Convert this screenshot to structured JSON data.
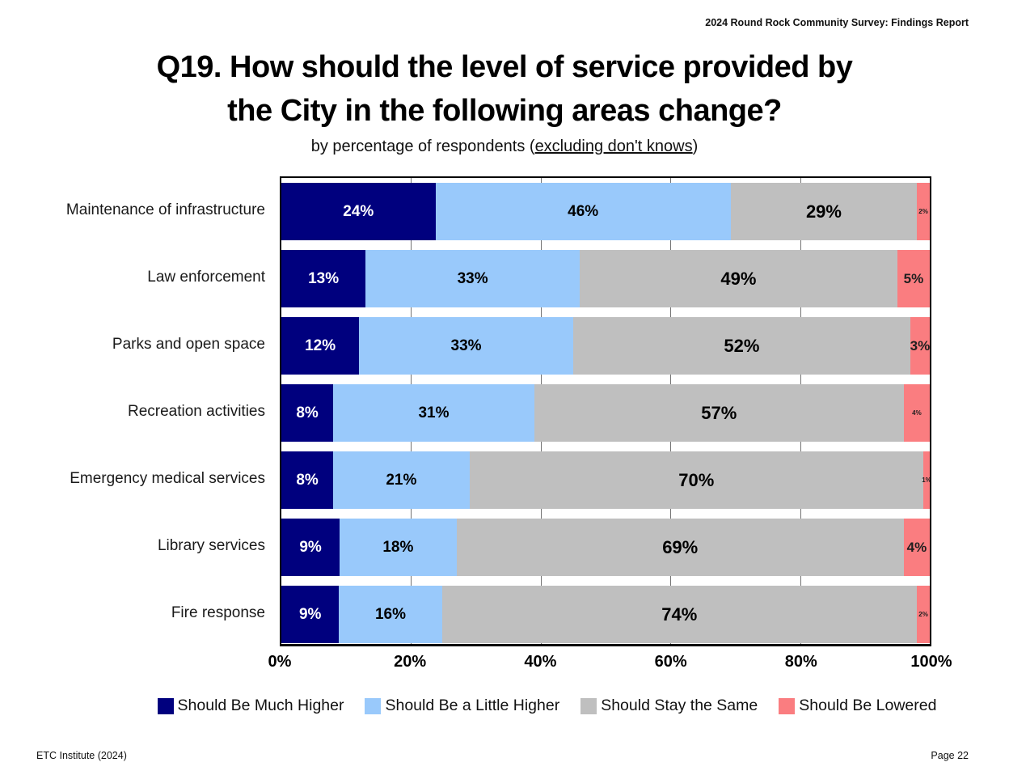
{
  "header": {
    "report_title": "2024 Round Rock Community Survey:  Findings Report"
  },
  "title_lines": {
    "line1": "Q19. How should the level of service provided by",
    "line2": "the City in the following areas change?"
  },
  "subtitle": {
    "prefix": "by percentage of respondents (",
    "underlined": "excluding don't knows",
    "suffix": ")"
  },
  "chart_data": {
    "type": "bar",
    "orientation": "horizontal-stacked",
    "title": "Q19. How should the level of service provided by the City in the following areas change?",
    "subtitle": "by percentage of respondents (excluding don't knows)",
    "categories": [
      "Maintenance of infrastructure",
      "Law enforcement",
      "Parks and open space",
      "Recreation activities",
      "Emergency medical services",
      "Library services",
      "Fire response"
    ],
    "series": [
      {
        "name": "Should Be Much Higher",
        "color": "#00007E",
        "values": [
          24,
          13,
          12,
          8,
          8,
          9,
          9
        ]
      },
      {
        "name": "Should Be a Little Higher",
        "color": "#99C9FB",
        "values": [
          46,
          33,
          33,
          31,
          21,
          18,
          16
        ]
      },
      {
        "name": "Should Stay the Same",
        "color": "#BFBFBF",
        "values": [
          29,
          49,
          52,
          57,
          70,
          69,
          74
        ]
      },
      {
        "name": "Should Be Lowered",
        "color": "#FA7D80",
        "values": [
          2,
          5,
          3,
          4,
          1,
          4,
          2
        ]
      }
    ],
    "x_ticks": [
      "0%",
      "20%",
      "40%",
      "60%",
      "80%",
      "100%"
    ],
    "xlim": [
      0,
      100
    ],
    "gridlines_at": [
      20,
      40,
      60,
      80
    ],
    "grid": true,
    "legend_position": "bottom",
    "small_lowered_labels": [
      true,
      false,
      false,
      true,
      true,
      false,
      true
    ]
  },
  "footer": {
    "left": "ETC Institute (2024)",
    "right": "Page 22"
  }
}
